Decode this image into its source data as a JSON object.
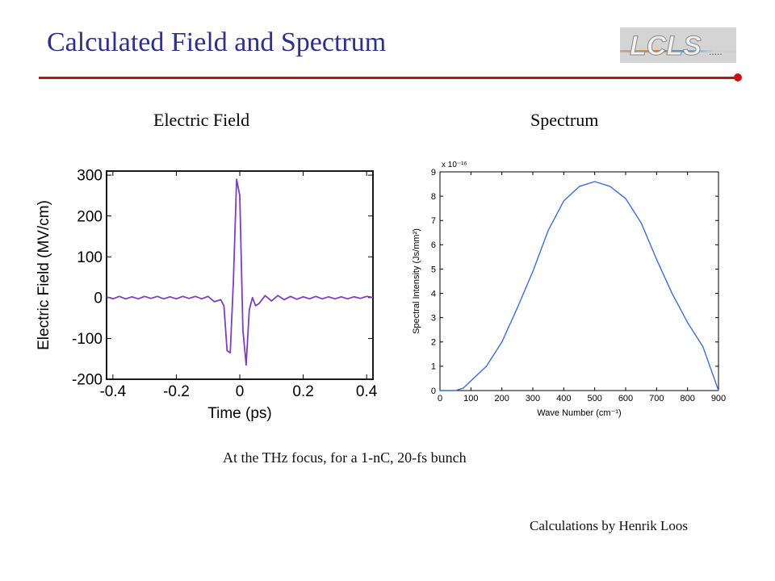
{
  "slide": {
    "title": "Calculated Field and Spectrum",
    "logo_text": "LCLS",
    "left_heading": "Electric Field",
    "right_heading": "Spectrum",
    "caption": "At the THz focus, for a 1-nC, 20-fs bunch",
    "credit": "Calculations by Henrik Loos",
    "colors": {
      "title": "#2f2f87",
      "rule": "#b0181b",
      "field_line": "#7b3fbf",
      "spectrum_line": "#3b6fd4"
    }
  },
  "chart_data": [
    {
      "type": "line",
      "title": "",
      "xlabel": "Time (ps)",
      "ylabel": "Electric Field (MV/cm)",
      "xlim": [
        -0.42,
        0.42
      ],
      "ylim": [
        -200,
        310
      ],
      "xticks": [
        -0.4,
        -0.2,
        0,
        0.2,
        0.4
      ],
      "xtick_labels": [
        "-0.4",
        "-0.2",
        "0",
        "0.2",
        "0.4"
      ],
      "yticks": [
        -200,
        -100,
        0,
        100,
        200,
        300
      ],
      "ytick_labels": [
        "-200",
        "-100",
        "0",
        "100",
        "200",
        "300"
      ],
      "grid": false,
      "series": [
        {
          "x": [
            -0.42,
            -0.4,
            -0.38,
            -0.36,
            -0.34,
            -0.32,
            -0.3,
            -0.28,
            -0.26,
            -0.24,
            -0.22,
            -0.2,
            -0.18,
            -0.16,
            -0.14,
            -0.12,
            -0.1,
            -0.08,
            -0.06,
            -0.05,
            -0.04,
            -0.03,
            -0.02,
            -0.01,
            0.0,
            0.01,
            0.02,
            0.03,
            0.04,
            0.05,
            0.06,
            0.07,
            0.08,
            0.1,
            0.12,
            0.14,
            0.16,
            0.18,
            0.2,
            0.22,
            0.24,
            0.26,
            0.28,
            0.3,
            0.32,
            0.34,
            0.36,
            0.38,
            0.4,
            0.42
          ],
          "values": [
            2,
            -3,
            3,
            -3,
            2,
            -3,
            3,
            -2,
            3,
            -3,
            2,
            -3,
            3,
            -2,
            3,
            -3,
            3,
            -10,
            -5,
            -20,
            -130,
            -135,
            40,
            290,
            250,
            -80,
            -165,
            -30,
            0,
            -20,
            -15,
            -5,
            5,
            -8,
            5,
            -5,
            3,
            -4,
            2,
            -3,
            3,
            -3,
            2,
            -3,
            2,
            -3,
            2,
            -2,
            3,
            0
          ]
        }
      ]
    },
    {
      "type": "line",
      "title": "",
      "xlabel": "Wave Number (cm⁻¹)",
      "ylabel": "Spectral Intensity (Js/mm²)",
      "scale_label": "x 10⁻¹⁶",
      "xlim": [
        0,
        900
      ],
      "ylim": [
        0,
        9
      ],
      "xticks": [
        0,
        100,
        200,
        300,
        400,
        500,
        600,
        700,
        800,
        900
      ],
      "xtick_labels": [
        "0",
        "100",
        "200",
        "300",
        "400",
        "500",
        "600",
        "700",
        "800",
        "900"
      ],
      "yticks": [
        0,
        1,
        2,
        3,
        4,
        5,
        6,
        7,
        8,
        9
      ],
      "ytick_labels": [
        "0",
        "1",
        "2",
        "3",
        "4",
        "5",
        "6",
        "7",
        "8",
        "9"
      ],
      "grid": false,
      "series": [
        {
          "x": [
            0,
            50,
            75,
            100,
            150,
            200,
            250,
            300,
            350,
            400,
            450,
            500,
            550,
            600,
            650,
            700,
            750,
            800,
            850,
            900
          ],
          "values": [
            0,
            0,
            0.1,
            0.4,
            1.0,
            2.0,
            3.4,
            4.9,
            6.6,
            7.8,
            8.4,
            8.6,
            8.4,
            7.9,
            6.9,
            5.4,
            4.0,
            2.8,
            1.8,
            0
          ]
        }
      ]
    }
  ]
}
